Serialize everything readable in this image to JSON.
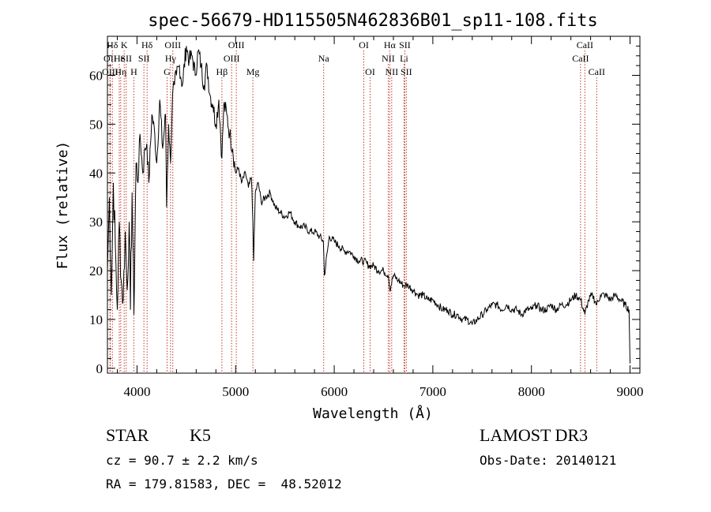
{
  "chart_data": {
    "type": "line",
    "title": "spec-56679-HD115505N462836B01_sp11-108.fits",
    "xlabel": "Wavelength (Å)",
    "ylabel": "Flux (relative)",
    "xlim": [
      3700,
      9100
    ],
    "ylim": [
      -1,
      68
    ],
    "x_ticks": [
      4000,
      5000,
      6000,
      7000,
      8000,
      9000
    ],
    "y_ticks": [
      0,
      10,
      20,
      30,
      40,
      50,
      60
    ],
    "grid": false,
    "series": [
      {
        "color": "#000000",
        "x": [
          3700,
          3720,
          3740,
          3760,
          3780,
          3800,
          3820,
          3840,
          3860,
          3880,
          3900,
          3920,
          3933,
          3950,
          3968,
          3990,
          4010,
          4030,
          4060,
          4080,
          4100,
          4120,
          4150,
          4180,
          4200,
          4230,
          4260,
          4290,
          4300,
          4320,
          4340,
          4360,
          4380,
          4400,
          4430,
          4460,
          4500,
          4530,
          4560,
          4590,
          4620,
          4650,
          4680,
          4710,
          4740,
          4770,
          4800,
          4830,
          4861,
          4880,
          4910,
          4940,
          4970,
          5000,
          5030,
          5060,
          5100,
          5130,
          5160,
          5175,
          5183,
          5200,
          5230,
          5260,
          5300,
          5350,
          5400,
          5450,
          5500,
          5550,
          5600,
          5650,
          5700,
          5750,
          5800,
          5850,
          5890,
          5900,
          5950,
          6000,
          6050,
          6100,
          6150,
          6200,
          6250,
          6300,
          6350,
          6400,
          6450,
          6500,
          6550,
          6563,
          6600,
          6650,
          6700,
          6750,
          6800,
          6850,
          6900,
          6950,
          7000,
          7050,
          7100,
          7150,
          7200,
          7250,
          7300,
          7350,
          7400,
          7450,
          7500,
          7550,
          7600,
          7650,
          7700,
          7750,
          7800,
          7850,
          7900,
          7950,
          8000,
          8050,
          8100,
          8150,
          8200,
          8250,
          8300,
          8350,
          8400,
          8450,
          8500,
          8542,
          8580,
          8620,
          8662,
          8700,
          8750,
          8800,
          8850,
          8900,
          8950,
          8990,
          9000
        ],
        "y": [
          20,
          35,
          15,
          38,
          25,
          12,
          30,
          18,
          14,
          28,
          16,
          30,
          12,
          36,
          11,
          42,
          38,
          48,
          40,
          45,
          46,
          38,
          52,
          48,
          42,
          55,
          45,
          52,
          33,
          50,
          42,
          56,
          58,
          60,
          62,
          58,
          66,
          63,
          64,
          60,
          65,
          62,
          58,
          62,
          56,
          54,
          50,
          55,
          43,
          54,
          52,
          48,
          45,
          40,
          41,
          38,
          40,
          37,
          39,
          30,
          22,
          36,
          38,
          34,
          35,
          36,
          33,
          32,
          31,
          32,
          30,
          29,
          29,
          28,
          28,
          27,
          26,
          19,
          27,
          26,
          25,
          24,
          24,
          23,
          22,
          22,
          21,
          21,
          20,
          20,
          19,
          16,
          19,
          18,
          17,
          17,
          16,
          15,
          15,
          14,
          14,
          13,
          12,
          12,
          11,
          11,
          10,
          10,
          9,
          10,
          11,
          12,
          13,
          13,
          12,
          13,
          12,
          12,
          11,
          12,
          12,
          13,
          12,
          12,
          13,
          12,
          13,
          13,
          14,
          15,
          14,
          11,
          14,
          15,
          13,
          15,
          15,
          14,
          15,
          14,
          13,
          12,
          1
        ]
      }
    ],
    "line_markers": [
      {
        "label": "Hδ",
        "x": 3750,
        "row": 1
      },
      {
        "label": "OII",
        "x": 3727,
        "row": 2
      },
      {
        "label": "OIII",
        "x": 3727,
        "row": 3
      },
      {
        "label": "K",
        "x": 3870,
        "row": 1
      },
      {
        "label": "He",
        "x": 3820,
        "row": 2
      },
      {
        "label": "Hη",
        "x": 3835,
        "row": 3
      },
      {
        "label": "SII",
        "x": 3890,
        "row": 2
      },
      {
        "label": "H",
        "x": 3968,
        "row": 3
      },
      {
        "label": "Hδ",
        "x": 4102,
        "row": 1
      },
      {
        "label": "SII",
        "x": 4070,
        "row": 2
      },
      {
        "label": "OIII",
        "x": 4363,
        "row": 1
      },
      {
        "label": "Hγ",
        "x": 4340,
        "row": 2
      },
      {
        "label": "G",
        "x": 4305,
        "row": 3
      },
      {
        "label": "OIII",
        "x": 5007,
        "row": 1
      },
      {
        "label": "OIII",
        "x": 4959,
        "row": 2
      },
      {
        "label": "Hβ",
        "x": 4861,
        "row": 3
      },
      {
        "label": "Mg",
        "x": 5175,
        "row": 3
      },
      {
        "label": "Na",
        "x": 5893,
        "row": 2
      },
      {
        "label": "OI",
        "x": 6300,
        "row": 1
      },
      {
        "label": "OI",
        "x": 6364,
        "row": 3
      },
      {
        "label": "Hα",
        "x": 6563,
        "row": 1
      },
      {
        "label": "SII",
        "x": 6716,
        "row": 1
      },
      {
        "label": "NII",
        "x": 6548,
        "row": 2
      },
      {
        "label": "Li",
        "x": 6708,
        "row": 2
      },
      {
        "label": "NII",
        "x": 6583,
        "row": 3
      },
      {
        "label": "SII",
        "x": 6731,
        "row": 3
      },
      {
        "label": "CaII",
        "x": 8542,
        "row": 1
      },
      {
        "label": "CaII",
        "x": 8498,
        "row": 2
      },
      {
        "label": "CaII",
        "x": 8662,
        "row": 3
      }
    ]
  },
  "info": {
    "object_type": "STAR",
    "subclass": "K5",
    "cz": "cz = 90.7 ± 2.2 km/s",
    "coords": "RA = 179.81583, DEC =  48.52012",
    "survey": "LAMOST DR3",
    "obs_date": "Obs-Date: 20140121"
  }
}
